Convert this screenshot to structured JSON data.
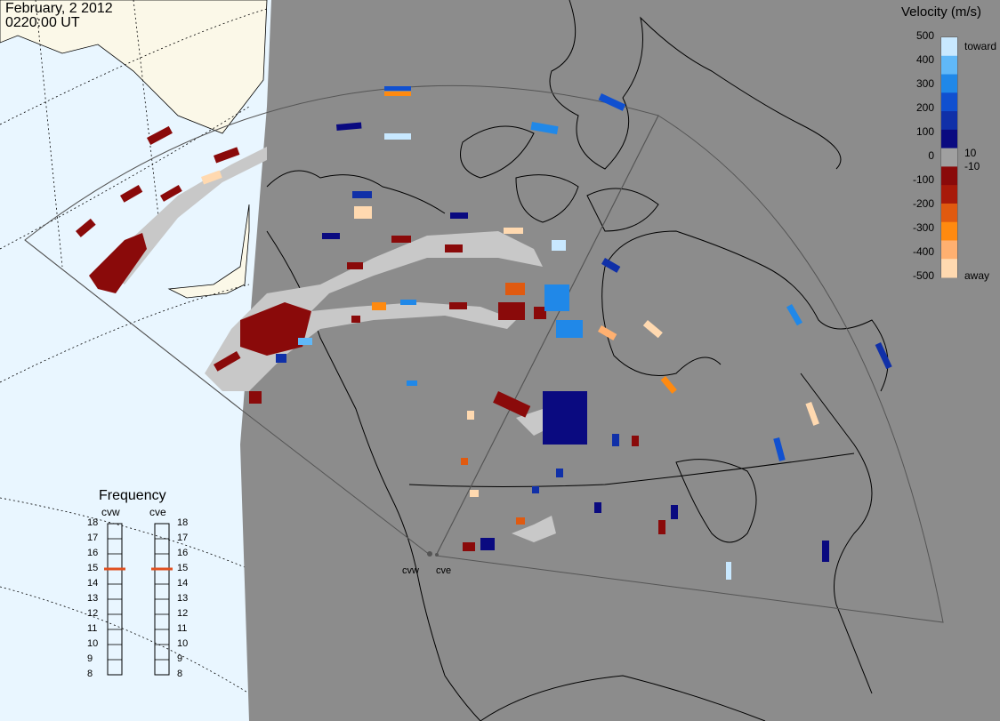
{
  "header": {
    "date": "February, 2 2012",
    "time": "0220:00 UT"
  },
  "colorbar": {
    "title": "Velocity (m/s)",
    "ticks": [
      "500",
      "400",
      "300",
      "200",
      "100",
      "0",
      "-100",
      "-200",
      "-300",
      "-400",
      "-500"
    ],
    "near_zero_ticks": [
      "10",
      "-10"
    ],
    "toward_label": "toward",
    "away_label": "away",
    "colors": [
      "#ffd9b0",
      "#ffb070",
      "#ff8a10",
      "#e05a10",
      "#a81a0a",
      "#8a0a0a",
      "#a0a0a0",
      "#0a0a80",
      "#1030a8",
      "#1050d0",
      "#2088e8",
      "#60b8f8",
      "#c8e8ff"
    ]
  },
  "frequency": {
    "title": "Frequency",
    "radars": [
      {
        "code": "cvw",
        "freq_mhz": 15
      },
      {
        "code": "cve",
        "freq_mhz": 15
      }
    ],
    "scale": [
      "18",
      "17",
      "16",
      "15",
      "14",
      "13",
      "12",
      "11",
      "10",
      "9",
      "8"
    ],
    "indicator_color": "#e05020"
  },
  "radar_sites": [
    "cvw",
    "cve"
  ],
  "colors": {
    "ocean": "#e9f6ff",
    "land": "#fbf8e8",
    "night_shade": "#8c8c8c",
    "ground_scatter": "#c8c8c8"
  }
}
